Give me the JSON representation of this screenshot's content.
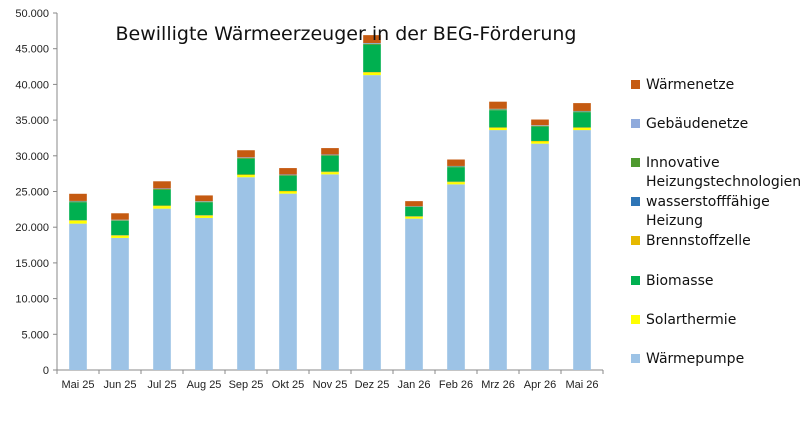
{
  "chart_data": {
    "type": "bar",
    "stacked": true,
    "title": "Bewilligte Wärmeerzeuger in der BEG-Förderung",
    "categories": [
      "Mai 25",
      "Jun 25",
      "Jul 25",
      "Aug 25",
      "Sep 25",
      "Okt 25",
      "Nov 25",
      "Dez 25",
      "Jan 26",
      "Feb 26",
      "Mrz 26",
      "Apr 26",
      "Mai 26"
    ],
    "ylim": [
      0,
      50000
    ],
    "yticks": [
      0,
      5000,
      10000,
      15000,
      20000,
      25000,
      30000,
      35000,
      40000,
      45000,
      50000
    ],
    "ytick_labels": [
      "0",
      "5.000",
      "10.000",
      "15.000",
      "20.000",
      "25.000",
      "30.000",
      "35.000",
      "40.000",
      "45.000",
      "50.000"
    ],
    "grid": false,
    "legend_position": "right",
    "series": [
      {
        "name": "Wärmepumpe",
        "color": "#9DC3E6",
        "values": [
          20500,
          18500,
          22600,
          21300,
          27000,
          24700,
          27400,
          41300,
          21200,
          26000,
          33600,
          31700,
          33600
        ]
      },
      {
        "name": "Solarthermie",
        "color": "#FFFF00",
        "values": [
          400,
          300,
          350,
          300,
          300,
          300,
          300,
          350,
          250,
          300,
          300,
          300,
          300
        ]
      },
      {
        "name": "Brennstoffzelle",
        "color": "#E6B800",
        "values": [
          80,
          80,
          80,
          80,
          80,
          80,
          80,
          80,
          80,
          80,
          80,
          80,
          80
        ]
      },
      {
        "name": "Biomasse",
        "color": "#00B050",
        "values": [
          2500,
          2000,
          2200,
          1800,
          2200,
          2100,
          2200,
          3800,
          1300,
          2000,
          2400,
          2000,
          2100
        ]
      },
      {
        "name": "wasserstofffähige Heizung",
        "color": "#2E75B6",
        "values": [
          0,
          0,
          0,
          0,
          0,
          0,
          0,
          0,
          0,
          0,
          0,
          0,
          0
        ]
      },
      {
        "name": "Innovative Heizungstechnologien",
        "color": "#4E9A2F",
        "values": [
          120,
          100,
          120,
          100,
          120,
          120,
          120,
          170,
          70,
          120,
          120,
          120,
          120
        ]
      },
      {
        "name": "Gebäudenetze",
        "color": "#8FAADC",
        "values": [
          80,
          70,
          80,
          70,
          80,
          80,
          80,
          100,
          50,
          80,
          80,
          80,
          80
        ]
      },
      {
        "name": "Wärmenetze",
        "color": "#C55A11",
        "values": [
          1000,
          900,
          1000,
          800,
          1000,
          900,
          900,
          1100,
          700,
          900,
          1000,
          800,
          1100
        ]
      }
    ],
    "legend": [
      {
        "lines": [
          "Wärmenetze"
        ],
        "color": "#C55A11"
      },
      {
        "lines": [
          "Gebäudenetze"
        ],
        "color": "#8FAADC"
      },
      {
        "lines": [
          "Innovative",
          "Heizungstechnologien"
        ],
        "color": "#4E9A2F"
      },
      {
        "lines": [
          "wasserstofffähige",
          "Heizung"
        ],
        "color": "#2E75B6"
      },
      {
        "lines": [
          "Brennstoffzelle"
        ],
        "color": "#E6B800"
      },
      {
        "lines": [
          "Biomasse"
        ],
        "color": "#00B050"
      },
      {
        "lines": [
          "Solarthermie"
        ],
        "color": "#FFFF00"
      },
      {
        "lines": [
          "Wärmepumpe"
        ],
        "color": "#9DC3E6"
      }
    ]
  }
}
